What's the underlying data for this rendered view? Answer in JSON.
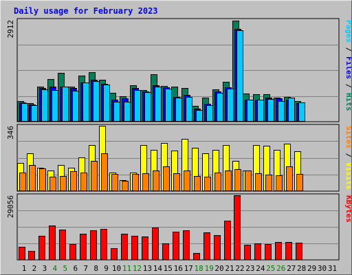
{
  "chart_data": {
    "title": "Daily usage for February 2023",
    "type": "bar",
    "categories": [
      "1",
      "2",
      "3",
      "4",
      "5",
      "6",
      "7",
      "8",
      "9",
      "10",
      "11",
      "12",
      "13",
      "14",
      "15",
      "16",
      "17",
      "18",
      "19",
      "20",
      "21",
      "22",
      "23",
      "24",
      "25",
      "26",
      "27",
      "28",
      "29",
      "30",
      "31"
    ],
    "weekend_days": [
      "4",
      "5",
      "11",
      "12",
      "18",
      "19",
      "25",
      "26"
    ],
    "colors": {
      "hits": "#00805a",
      "files": "#0000ff",
      "pages": "#00ccff",
      "visits": "#ffff00",
      "sites": "#ff8000",
      "kbytes": "#ff0000",
      "weekday_tick": "#000000",
      "weekend_tick": "#008000"
    },
    "panels": [
      {
        "name": "hits-files-pages",
        "ymax_label": "2912",
        "ymax": 2912,
        "labels": [
          {
            "text": "Pages",
            "color": "#00ccff"
          },
          {
            "text": " / ",
            "color": "#000000"
          },
          {
            "text": "Files",
            "color": "#0000ff"
          },
          {
            "text": " / ",
            "color": "#000000"
          },
          {
            "text": "Hits",
            "color": "#00805a"
          }
        ],
        "series": [
          {
            "name": "Hits",
            "values": [
              590,
              540,
              1000,
              1220,
              1390,
              1010,
              1320,
              1420,
              1200,
              830,
              720,
              1040,
              910,
              1360,
              1020,
              1000,
              960,
              450,
              690,
              920,
              1150,
              2900,
              800,
              790,
              790,
              690,
              700,
              600,
              0,
              0,
              0
            ]
          },
          {
            "name": "Files",
            "values": [
              560,
              500,
              970,
              1010,
              1010,
              960,
              1130,
              1200,
              1080,
              620,
              660,
              960,
              870,
              1040,
              990,
              710,
              760,
              380,
              510,
              860,
              980,
              2650,
              630,
              630,
              680,
              660,
              620,
              540,
              0,
              0,
              0
            ]
          },
          {
            "name": "Pages",
            "values": [
              530,
              470,
              930,
              900,
              1000,
              890,
              1130,
              1160,
              1060,
              570,
              580,
              900,
              840,
              1000,
              950,
              680,
              700,
              340,
              470,
              820,
              940,
              2610,
              620,
              620,
              650,
              600,
              690,
              560,
              0,
              0,
              0
            ]
          }
        ]
      },
      {
        "name": "visits-sites",
        "ymax_label": "346",
        "ymax": 346,
        "labels": [
          {
            "text": "Sites",
            "color": "#ff8000"
          },
          {
            "text": " / ",
            "color": "#000000"
          },
          {
            "text": "Visits",
            "color": "#ffff00"
          }
        ],
        "series": [
          {
            "name": "Visits",
            "values": [
              150,
              200,
              124,
              110,
              140,
              125,
              180,
              245,
              346,
              100,
              60,
              100,
              245,
              220,
              255,
              215,
              275,
              230,
              200,
              220,
              245,
              160,
              110,
              245,
              240,
              220,
              250,
              210,
              0,
              0,
              0
            ]
          },
          {
            "name": "Sites",
            "values": [
              100,
              140,
              120,
              75,
              80,
              105,
              100,
              160,
              200,
              92,
              55,
              90,
              95,
              110,
              130,
              95,
              110,
              80,
              75,
              100,
              110,
              118,
              110,
              95,
              88,
              85,
              130,
              90,
              0,
              0,
              0
            ]
          }
        ]
      },
      {
        "name": "kbytes",
        "ymax_label": "29056",
        "ymax": 29056,
        "labels": [
          {
            "text": "KBytes",
            "color": "#ff0000"
          }
        ],
        "series": [
          {
            "name": "KBytes",
            "values": [
              5800,
              4000,
              10800,
              15400,
              13600,
              7200,
              11600,
              13400,
              14000,
              5200,
              11800,
              10800,
              10600,
              14400,
              7500,
              12600,
              13200,
              3000,
              12400,
              11200,
              17600,
              29056,
              6800,
              7500,
              7000,
              8000,
              8100,
              7700,
              0,
              0,
              0
            ]
          }
        ]
      }
    ]
  }
}
